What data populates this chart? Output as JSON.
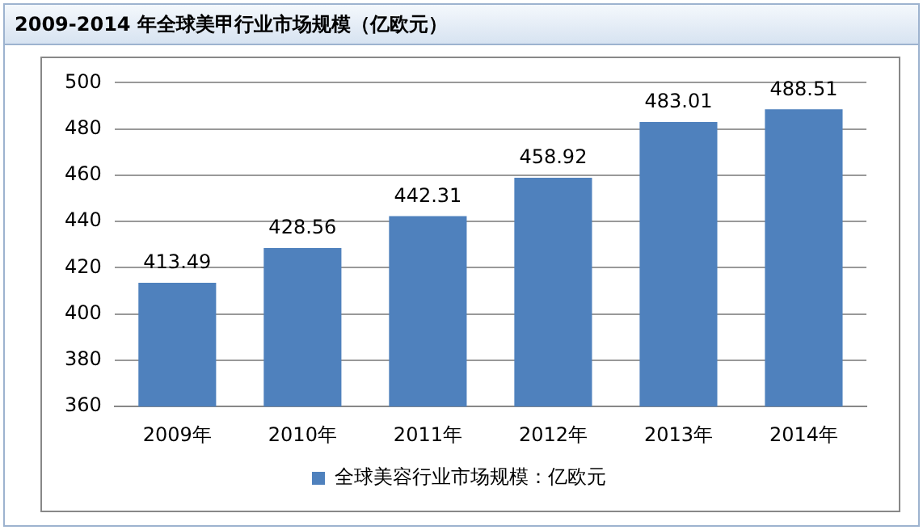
{
  "chart_data": {
    "type": "bar",
    "title": "2009-2014 年全球美甲行业市场规模（亿欧元）",
    "categories": [
      "2009年",
      "2010年",
      "2011年",
      "2012年",
      "2013年",
      "2014年"
    ],
    "series": [
      {
        "name": "全球美容行业市场规模：亿欧元",
        "color": "#4f81bd",
        "values": [
          413.49,
          428.56,
          442.31,
          458.92,
          483.01,
          488.51
        ]
      }
    ],
    "ylim": [
      360,
      500
    ],
    "yticks": [
      360,
      380,
      400,
      420,
      440,
      460,
      480,
      500
    ],
    "grid": "y",
    "legend": "bottom",
    "data_labels": true
  }
}
